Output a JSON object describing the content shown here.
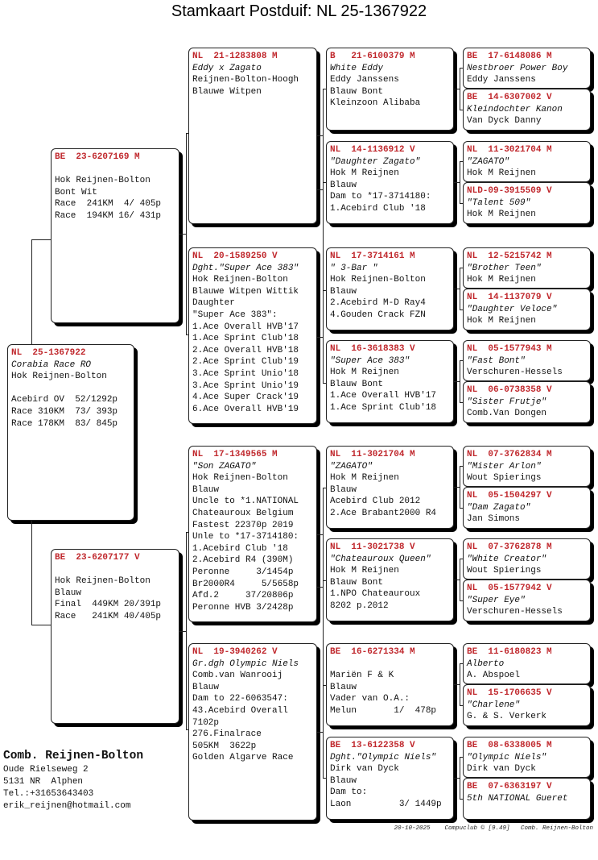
{
  "title": "Stamkaart Postduif: NL  25-1367922",
  "boxes": [
    {
      "ring": "NL  25-1367922",
      "name": "Corabia Race RO",
      "lines": [
        "Hok Reijnen-Bolton",
        "",
        "Acebird OV  52/1292p",
        "Race 310KM  73/ 393p",
        "Race 178KM  83/ 845p"
      ]
    },
    {
      "ring": "BE  23-6207169 M",
      "name": "",
      "lines": [
        "Hok Reijnen-Bolton",
        "Bont Wit",
        "Race  241KM  4/ 405p",
        "Race  194KM 16/ 431p"
      ]
    },
    {
      "ring": "BE  23-6207177 V",
      "name": "",
      "lines": [
        "Hok Reijnen-Bolton",
        "Blauw",
        "Final  449KM 20/391p",
        "Race   241KM 40/405p"
      ]
    },
    {
      "ring": "NL  21-1283808 M",
      "name": "Eddy x Zagato",
      "lines": [
        "Reijnen-Bolton-Hoogh",
        "Blauwe Witpen"
      ]
    },
    {
      "ring": "NL  20-1589250 V",
      "name": "Dght.\"Super Ace 383\"",
      "lines": [
        "Hok Reijnen-Bolton",
        "Blauwe Witpen Wittik",
        "Daughter",
        "\"Super Ace 383\":",
        "1.Ace Overall HVB'17",
        "1.Ace Sprint Club'18",
        "2.Ace Overall HVB'18",
        "2.Ace Sprint Club'19",
        "3.Ace Sprint Unio'18",
        "3.Ace Sprint Unio'19",
        "4.Ace Super Crack'19",
        "6.Ace Overall HVB'19"
      ]
    },
    {
      "ring": "NL  17-1349565 M",
      "name": "\"Son ZAGATO\"",
      "lines": [
        "Hok Reijnen-Bolton",
        "Blauw",
        "Uncle to *1.NATIONAL",
        "Chateauroux Belgium",
        "Fastest 22370p 2019",
        "Unle to *17-3714180:",
        "1.Acebird Club '18",
        "2.Acebird R4 (390M)",
        "Peronne     3/1454p",
        "Br2000R4     5/5658p",
        "Afd.2     37/20806p",
        "Peronne HVB 3/2428p"
      ]
    },
    {
      "ring": "NL  19-3940262 V",
      "name": "Gr.dgh Olympic Niels",
      "lines": [
        "Comb.van Wanrooij",
        "Blauw",
        "Dam to 22-6063547:",
        "43.Acebird Overall",
        "7102p",
        "276.Finalrace",
        "505KM  3622p",
        "Golden Algarve Race"
      ]
    },
    {
      "ring": "B   21-6100379 M",
      "name": "White Eddy",
      "lines": [
        "Eddy Janssens",
        "Blauw Bont",
        "Kleinzoon Alibaba"
      ]
    },
    {
      "ring": "NL  14-1136912 V",
      "name": "\"Daughter Zagato\"",
      "lines": [
        "Hok M Reijnen",
        "Blauw",
        "Dam to *17-3714180:",
        "1.Acebird Club '18"
      ]
    },
    {
      "ring": "NL  17-3714161 M",
      "name": "\" 3-Bar \"",
      "lines": [
        "Hok Reijnen-Bolton",
        "Blauw",
        "2.Acebird M-D Ray4",
        "4.Gouden Crack FZN"
      ]
    },
    {
      "ring": "NL  16-3618383 V",
      "name": "\"Super Ace 383\"",
      "lines": [
        "Hok M Reijnen",
        "Blauw Bont",
        "1.Ace Overall HVB'17",
        "1.Ace Sprint Club'18"
      ]
    },
    {
      "ring": "NL  11-3021704 M",
      "name": "\"ZAGATO\"",
      "lines": [
        "Hok M Reijnen",
        "Blauw",
        "Acebird Club 2012",
        "2.Ace Brabant2000 R4"
      ]
    },
    {
      "ring": "NL  11-3021738 V",
      "name": "\"Chateauroux Queen\"",
      "lines": [
        "Hok M Reijnen",
        "Blauw Bont",
        "1.NPO Chateauroux",
        "8202 p.2012"
      ]
    },
    {
      "ring": "BE  16-6271334 M",
      "name": "",
      "lines": [
        "Mariën F & K",
        "Blauw",
        "Vader van O.A.:",
        "Melun       1/  478p"
      ]
    },
    {
      "ring": "BE  13-6122358 V",
      "name": "Dght.\"Olympic Niels\"",
      "lines": [
        "Dirk van Dyck",
        "Blauw",
        "Dam to:",
        "Laon         3/ 1449p"
      ]
    },
    {
      "ring": "BE  17-6148086 M",
      "name": "Nestbroer Power Boy",
      "lines": [
        "Eddy Janssens"
      ]
    },
    {
      "ring": "BE  14-6307002 V",
      "name": "Kleindochter Kanon",
      "lines": [
        "Van Dyck Danny"
      ]
    },
    {
      "ring": "NL  11-3021704 M",
      "name": "\"ZAGATO\"",
      "lines": [
        "Hok M Reijnen"
      ]
    },
    {
      "ring": "NLD-09-3915509 V",
      "name": "\"Talent 509\"",
      "lines": [
        "Hok M Reijnen"
      ]
    },
    {
      "ring": "NL  12-5215742 M",
      "name": "\"Brother Teen\"",
      "lines": [
        "Hok M Reijnen"
      ]
    },
    {
      "ring": "NL  14-1137079 V",
      "name": "\"Daughter Veloce\"",
      "lines": [
        "Hok M Reijnen"
      ]
    },
    {
      "ring": "NL  05-1577943 M",
      "name": "\"Fast Bont\"",
      "lines": [
        "Verschuren-Hessels"
      ]
    },
    {
      "ring": "NL  06-0738358 V",
      "name": "\"Sister Frutje\"",
      "lines": [
        "Comb.Van Dongen"
      ]
    },
    {
      "ring": "NL  07-3762834 M",
      "name": "\"Mister Arlon\"",
      "lines": [
        "Wout Spierings"
      ]
    },
    {
      "ring": "NL  05-1504297 V",
      "name": "\"Dam Zagato\"",
      "lines": [
        "Jan Simons"
      ]
    },
    {
      "ring": "NL  07-3762878 M",
      "name": "\"White Creator\"",
      "lines": [
        "Wout Spierings"
      ]
    },
    {
      "ring": "NL  05-1577942 V",
      "name": "\"Super Eye\"",
      "lines": [
        "Verschuren-Hessels"
      ]
    },
    {
      "ring": "BE  11-6180823 M",
      "name": "Alberto",
      "lines": [
        "A. Abspoel"
      ]
    },
    {
      "ring": "NL  15-1706635 V",
      "name": "\"Charlene\"",
      "lines": [
        "G. & S. Verkerk"
      ]
    },
    {
      "ring": "BE  08-6338005 M",
      "name": "\"Olympic Niels\"",
      "lines": [
        "Dirk van Dyck"
      ]
    },
    {
      "ring": "BE  07-6363197 V",
      "name": "5th NATIONAL Gueret",
      "lines": []
    }
  ],
  "contact": {
    "name": "Comb. Reijnen-Bolton",
    "address": "Oude Rielseweg 2",
    "city": "5131 NR  Alphen",
    "phone": "Tel.:+31653643403",
    "email": "erik_reijnen@hotmail.com"
  },
  "footer": "20-10-2025    Compuclub © [9.49]   Comb. Reijnen-Bolton",
  "colors": {
    "ring": "#c0282d",
    "shadow": "#000000"
  }
}
